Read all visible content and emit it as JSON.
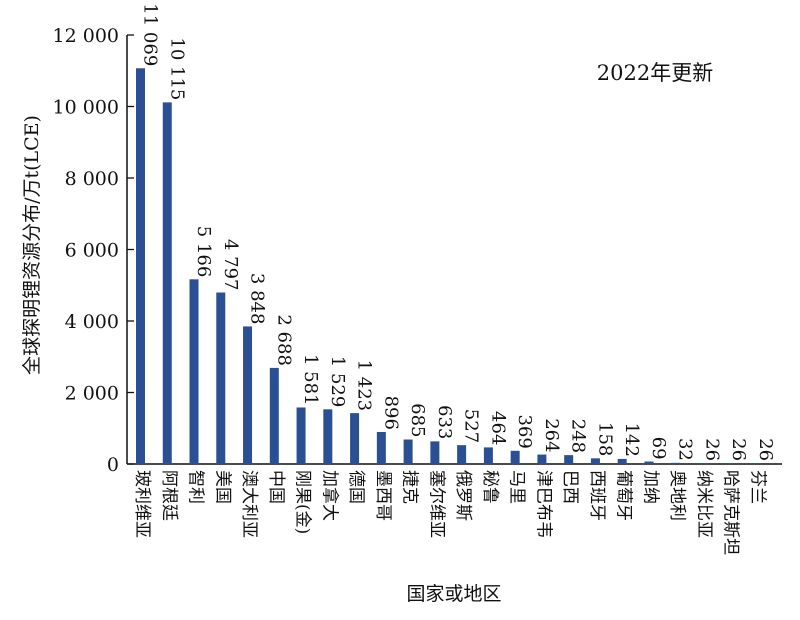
{
  "chart_data": {
    "type": "bar",
    "ylabel": "全球探明锂资源分布/万t(LCE)",
    "xlabel": "国家或地区",
    "annotation": "2022年更新",
    "ylim": [
      0,
      12000
    ],
    "yticks": [
      0,
      2000,
      4000,
      6000,
      8000,
      10000,
      12000
    ],
    "ytick_labels": [
      "0",
      "2 000",
      "4 000",
      "6 000",
      "8 000",
      "10 000",
      "12 000"
    ],
    "categories": [
      "玻利维亚",
      "阿根廷",
      "智利",
      "美国",
      "澳大利亚",
      "中国",
      "刚果(金)",
      "加拿大",
      "德国",
      "墨西哥",
      "捷克",
      "塞尔维亚",
      "俄罗斯",
      "秘鲁",
      "马里",
      "津巴布韦",
      "巴西",
      "西班牙",
      "葡萄牙",
      "加纳",
      "奥地利",
      "纳米比亚",
      "哈萨克斯坦",
      "芬兰"
    ],
    "values": [
      11069,
      10115,
      5166,
      4797,
      3848,
      2688,
      1581,
      1529,
      1423,
      896,
      685,
      633,
      527,
      464,
      369,
      264,
      248,
      158,
      142,
      69,
      32,
      26,
      26,
      26
    ],
    "value_labels": [
      "11 069",
      "10 115",
      "5 166",
      "4 797",
      "3 848",
      "2 688",
      "1 581",
      "1 529",
      "1 423",
      "896",
      "685",
      "633",
      "527",
      "464",
      "369",
      "264",
      "248",
      "158",
      "142",
      "69",
      "32",
      "26",
      "26",
      "26"
    ],
    "bar_color": "#2b4f93",
    "grid": false,
    "legend": "none"
  }
}
